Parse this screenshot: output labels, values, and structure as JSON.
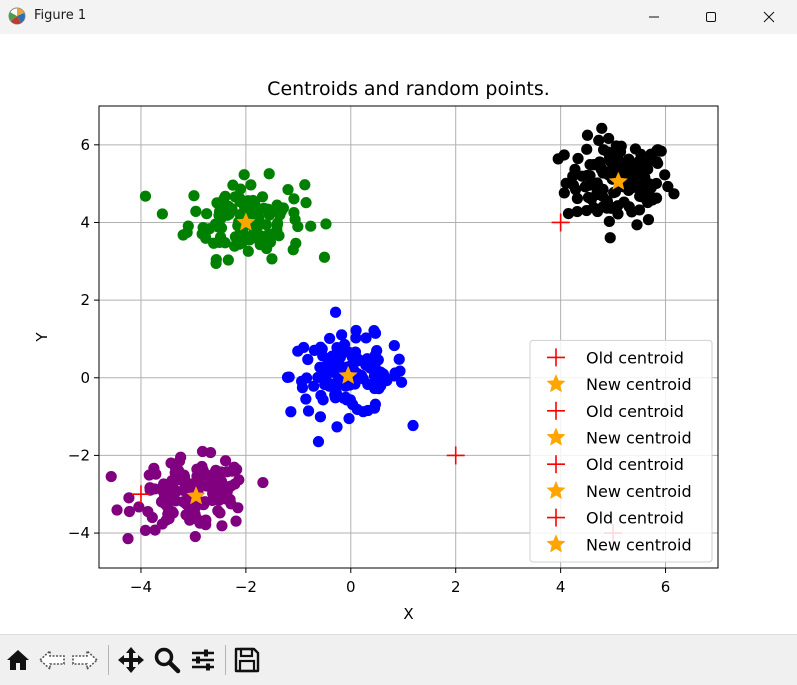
{
  "window": {
    "title": "Figure 1"
  },
  "toolbar": {
    "tools": [
      "home-icon",
      "back-icon",
      "forward-icon",
      "pan-icon",
      "zoom-icon",
      "configure-subplots-icon",
      "save-icon"
    ]
  },
  "chart_data": {
    "type": "scatter",
    "title": "Centroids and random points.",
    "xlabel": "X",
    "ylabel": "Y",
    "xlim": [
      -4.8,
      7.0
    ],
    "ylim": [
      -4.9,
      7.0
    ],
    "xticks": [
      -4,
      -2,
      0,
      2,
      4,
      6
    ],
    "yticks": [
      -4,
      -2,
      0,
      2,
      4,
      6
    ],
    "grid": true,
    "legend_position": "lower-right",
    "clusters": [
      {
        "color": "#000000",
        "center": [
          5.1,
          5.05
        ],
        "spread": [
          0.5,
          0.55
        ]
      },
      {
        "color": "#008000",
        "center": [
          -2.0,
          4.1
        ],
        "spread": [
          0.55,
          0.5
        ]
      },
      {
        "color": "#0000ff",
        "center": [
          -0.05,
          0.05
        ],
        "spread": [
          0.55,
          0.5
        ]
      },
      {
        "color": "#800080",
        "center": [
          -3.0,
          -3.0
        ],
        "spread": [
          0.55,
          0.45
        ]
      }
    ],
    "old_centroids": [
      [
        4.0,
        4.0
      ],
      [
        -4.0,
        -3.0
      ],
      [
        2.0,
        -2.0
      ],
      [
        5.0,
        -4.0
      ]
    ],
    "new_centroids": [
      [
        5.1,
        5.05
      ],
      [
        -2.0,
        4.0
      ],
      [
        -0.05,
        0.05
      ],
      [
        -2.95,
        -3.05
      ]
    ],
    "legend": [
      {
        "label": "Old centroid",
        "marker": "plus",
        "color": "#ff0000"
      },
      {
        "label": "New centroid",
        "marker": "star",
        "color": "#ffa500"
      },
      {
        "label": "Old centroid",
        "marker": "plus",
        "color": "#ff0000"
      },
      {
        "label": "New centroid",
        "marker": "star",
        "color": "#ffa500"
      },
      {
        "label": "Old centroid",
        "marker": "plus",
        "color": "#ff0000"
      },
      {
        "label": "New centroid",
        "marker": "star",
        "color": "#ffa500"
      },
      {
        "label": "Old centroid",
        "marker": "plus",
        "color": "#ff0000"
      },
      {
        "label": "New centroid",
        "marker": "star",
        "color": "#ffa500"
      }
    ]
  }
}
